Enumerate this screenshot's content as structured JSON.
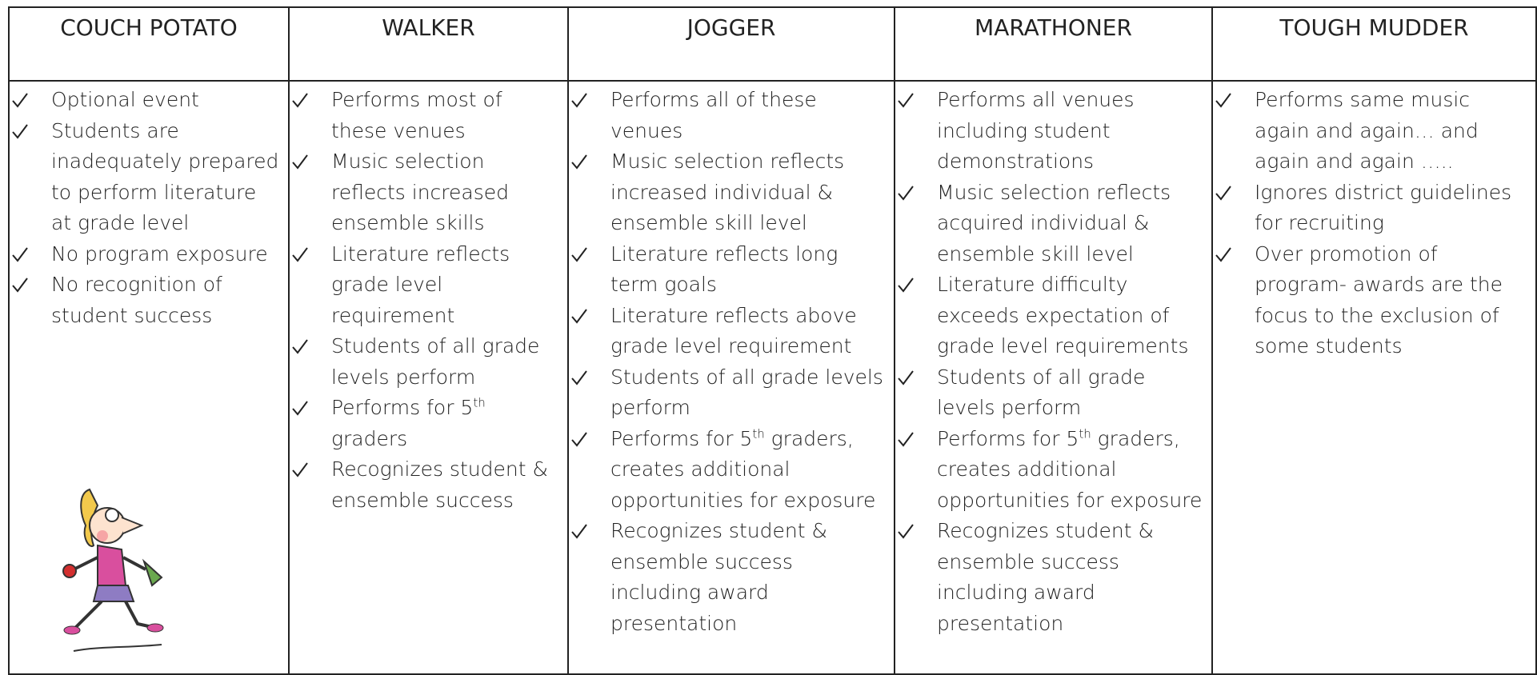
{
  "table": {
    "headers": [
      "COUCH POTATO",
      "WALKER",
      "JOGGER",
      "MARATHONER",
      "TOUGH MUDDER"
    ],
    "columns": [
      {
        "items": [
          "Optional event",
          "Students are inadequately prepared to perform literature at grade level",
          "No program exposure",
          "No recognition of student success"
        ]
      },
      {
        "items": [
          "Performs most of these venues",
          "Music selection reflects increased ensemble skills",
          "Literature reflects grade level requirement",
          "Students of all grade levels perform",
          {
            "before": "Performs for 5",
            "sup": "th",
            "after": " graders"
          },
          "Recognizes student & ensemble success"
        ]
      },
      {
        "items": [
          "Performs all of these venues",
          "Music selection reflects increased individual & ensemble skill level",
          "Literature reflects long term goals",
          "Literature reflects above grade level requirement",
          "Students of all grade levels perform",
          {
            "before": "Performs for 5",
            "sup": "th",
            "after": " graders, creates additional opportunities for exposure"
          },
          "Recognizes student & ensemble success including award presentation"
        ]
      },
      {
        "items": [
          "Performs all venues including student demonstrations",
          "Music selection reflects acquired individual & ensemble skill level",
          "Literature difficulty exceeds expectation of grade level requirements",
          "Students of all grade levels perform",
          {
            "before": "Performs for 5",
            "sup": "th",
            "after": " graders, creates additional opportunities for exposure"
          },
          "Recognizes student & ensemble success including award presentation"
        ]
      },
      {
        "items": [
          "Performs same music again and again… and again and again …..",
          "Ignores district guidelines for recruiting",
          "Over promotion of program- awards are the focus to the exclusion of some students"
        ]
      }
    ]
  }
}
